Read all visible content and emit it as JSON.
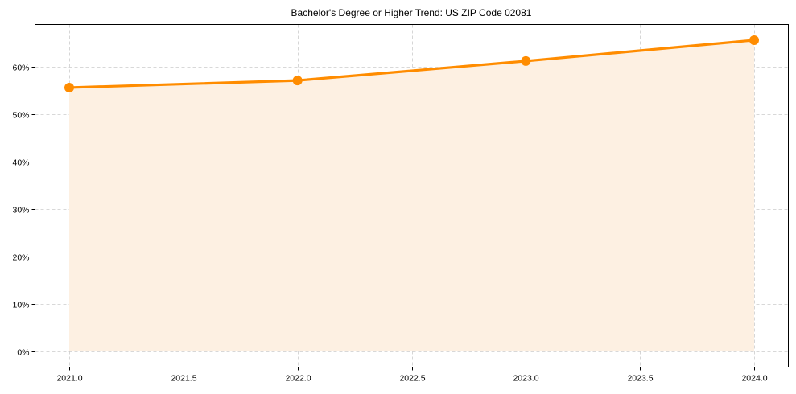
{
  "chart_data": {
    "type": "area",
    "title": "Bachelor's Degree or Higher Trend: US ZIP Code 02081",
    "xlabel": "",
    "ylabel": "",
    "x": [
      2021,
      2022,
      2023,
      2024
    ],
    "series": [
      {
        "name": "Bachelor's Degree or Higher",
        "values": [
          55.6,
          57.1,
          61.2,
          65.6
        ],
        "color": "#ff8c00",
        "fill": "#fdefe0",
        "marker": "circle"
      }
    ],
    "x_ticks": [
      "2021.0",
      "2021.5",
      "2022.0",
      "2022.5",
      "2023.0",
      "2023.5",
      "2024.0"
    ],
    "x_tick_values": [
      2021.0,
      2021.5,
      2022.0,
      2022.5,
      2023.0,
      2023.5,
      2024.0
    ],
    "y_ticks": [
      "0%",
      "10%",
      "20%",
      "30%",
      "40%",
      "50%",
      "60%"
    ],
    "y_tick_values": [
      0,
      10,
      20,
      30,
      40,
      50,
      60
    ],
    "xlim": [
      2020.85,
      2024.15
    ],
    "ylim": [
      -3.2,
      68.8
    ],
    "grid": true,
    "legend": "none"
  }
}
